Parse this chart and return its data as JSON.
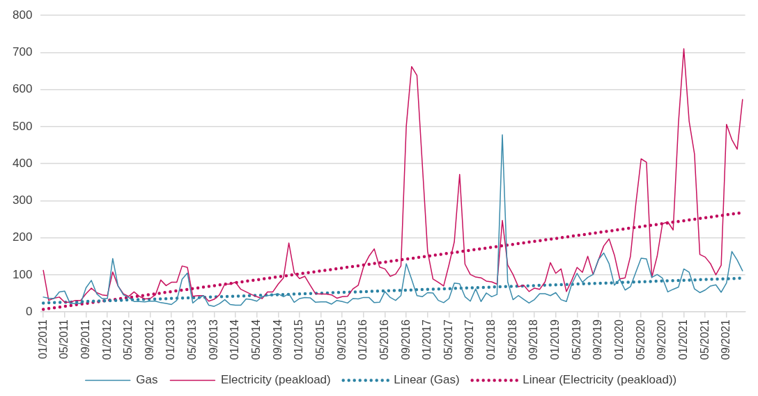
{
  "chart_data": {
    "type": "line",
    "categories": [
      "01/2011",
      null,
      null,
      null,
      "05/2011",
      null,
      null,
      null,
      "09/2011",
      null,
      null,
      null,
      "01/2012",
      null,
      null,
      null,
      "05/2012",
      null,
      null,
      null,
      "09/2012",
      null,
      null,
      null,
      "01/2013",
      null,
      null,
      null,
      "05/2013",
      null,
      null,
      null,
      "09/2013",
      null,
      null,
      null,
      "01/2014",
      null,
      null,
      null,
      "05/2014",
      null,
      null,
      null,
      "09/2014",
      null,
      null,
      null,
      "01/2015",
      null,
      null,
      null,
      "05/2015",
      null,
      null,
      null,
      "09/2015",
      null,
      null,
      null,
      "01/2016",
      null,
      null,
      null,
      "05/2016",
      null,
      null,
      null,
      "09/2016",
      null,
      null,
      null,
      "01/2017",
      null,
      null,
      null,
      "05/2017",
      null,
      null,
      null,
      "09/2017",
      null,
      null,
      null,
      "01/2018",
      null,
      null,
      null,
      "05/2018",
      null,
      null,
      null,
      "09/2018",
      null,
      null,
      null,
      "01/2019",
      null,
      null,
      null,
      "05/2019",
      null,
      null,
      null,
      "09/2019",
      null,
      null,
      null,
      "01/2020",
      null,
      null,
      null,
      "05/2020",
      null,
      null,
      null,
      "09/2020",
      null,
      null,
      null,
      "01/2021",
      null,
      null,
      null,
      "05/2021",
      null,
      null,
      null,
      "09/2021",
      null,
      null,
      null
    ],
    "series": [
      {
        "name": "Gas",
        "color": "#3a8bab",
        "values": [
          40,
          37,
          36,
          54,
          56,
          23,
          23,
          23,
          65,
          85,
          49,
          36,
          36,
          144,
          70,
          46,
          39,
          28,
          28,
          27,
          29,
          29,
          25,
          23,
          20,
          31,
          88,
          105,
          24,
          36,
          44,
          18,
          15,
          22,
          33,
          20,
          18,
          18,
          35,
          33,
          29,
          41,
          44,
          46,
          49,
          41,
          49,
          26,
          36,
          39,
          38,
          26,
          27,
          27,
          21,
          31,
          28,
          24,
          36,
          35,
          39,
          39,
          25,
          26,
          55,
          39,
          31,
          44,
          130,
          88,
          44,
          41,
          52,
          51,
          31,
          25,
          36,
          78,
          76,
          41,
          29,
          62,
          28,
          51,
          41,
          47,
          478,
          81,
          33,
          44,
          34,
          24,
          33,
          49,
          49,
          44,
          52,
          33,
          28,
          75,
          104,
          80,
          93,
          101,
          141,
          159,
          130,
          72,
          88,
          59,
          68,
          107,
          145,
          143,
          93,
          101,
          91,
          54,
          61,
          67,
          116,
          107,
          62,
          52,
          59,
          70,
          73,
          53,
          78,
          163,
          140,
          111
        ]
      },
      {
        "name": "Electricity (peakload)",
        "color": "#c8125e",
        "values": [
          112,
          31,
          37,
          40,
          26,
          26,
          31,
          31,
          49,
          64,
          52,
          46,
          44,
          108,
          70,
          49,
          42,
          54,
          42,
          35,
          36,
          46,
          86,
          71,
          80,
          80,
          124,
          120,
          42,
          44,
          44,
          29,
          34,
          46,
          75,
          75,
          80,
          61,
          54,
          47,
          41,
          36,
          54,
          54,
          75,
          92,
          186,
          106,
          90,
          96,
          72,
          49,
          48,
          48,
          46,
          37,
          41,
          42,
          62,
          72,
          122,
          150,
          170,
          121,
          116,
          96,
          102,
          124,
          501,
          662,
          638,
          400,
          163,
          89,
          80,
          70,
          127,
          189,
          371,
          129,
          101,
          94,
          92,
          83,
          81,
          75,
          247,
          127,
          101,
          68,
          72,
          55,
          64,
          61,
          81,
          133,
          104,
          116,
          55,
          85,
          120,
          107,
          150,
          101,
          140,
          178,
          197,
          153,
          89,
          92,
          150,
          290,
          413,
          404,
          93,
          150,
          238,
          243,
          221,
          511,
          710,
          514,
          426,
          155,
          148,
          130,
          100,
          126,
          506,
          465,
          439,
          573
        ]
      },
      {
        "name": "Linear (Gas)",
        "color": "#2a82a3",
        "line_style": "dotted",
        "values": [
          24,
          null,
          null,
          null,
          null,
          null,
          null,
          null,
          null,
          null,
          null,
          null,
          null,
          null,
          null,
          null,
          null,
          null,
          null,
          null,
          null,
          null,
          null,
          null,
          null,
          null,
          null,
          null,
          null,
          null,
          null,
          null,
          null,
          null,
          null,
          null,
          null,
          null,
          null,
          null,
          null,
          null,
          null,
          null,
          null,
          null,
          null,
          null,
          null,
          null,
          null,
          null,
          null,
          null,
          null,
          null,
          null,
          null,
          null,
          null,
          null,
          null,
          null,
          null,
          null,
          null,
          null,
          null,
          null,
          null,
          null,
          null,
          null,
          null,
          null,
          null,
          null,
          null,
          null,
          null,
          null,
          null,
          null,
          null,
          null,
          null,
          null,
          null,
          null,
          null,
          null,
          null,
          null,
          null,
          null,
          null,
          null,
          null,
          null,
          null,
          null,
          null,
          null,
          null,
          null,
          null,
          null,
          null,
          null,
          null,
          null,
          null,
          null,
          null,
          null,
          null,
          null,
          null,
          null,
          null,
          null,
          null,
          null,
          null,
          null,
          null,
          null,
          null,
          null,
          null,
          null,
          91
        ]
      },
      {
        "name": "Linear (Electricity (peakload))",
        "color": "#c0085c",
        "line_style": "dotted",
        "values": [
          7,
          null,
          null,
          null,
          null,
          null,
          null,
          null,
          null,
          null,
          null,
          null,
          null,
          null,
          null,
          null,
          null,
          null,
          null,
          null,
          null,
          null,
          null,
          null,
          null,
          null,
          null,
          null,
          null,
          null,
          null,
          null,
          null,
          null,
          null,
          null,
          null,
          null,
          null,
          null,
          null,
          null,
          null,
          null,
          null,
          null,
          null,
          null,
          null,
          null,
          null,
          null,
          null,
          null,
          null,
          null,
          null,
          null,
          null,
          null,
          null,
          null,
          null,
          null,
          null,
          null,
          null,
          null,
          null,
          null,
          null,
          null,
          null,
          null,
          null,
          null,
          null,
          null,
          null,
          null,
          null,
          null,
          null,
          null,
          null,
          null,
          null,
          null,
          null,
          null,
          null,
          null,
          null,
          null,
          null,
          null,
          null,
          null,
          null,
          null,
          null,
          null,
          null,
          null,
          null,
          null,
          null,
          null,
          null,
          null,
          null,
          null,
          null,
          null,
          null,
          null,
          null,
          null,
          null,
          null,
          null,
          null,
          null,
          null,
          null,
          null,
          null,
          null,
          null,
          null,
          null,
          268
        ]
      }
    ],
    "ylim": [
      0,
      800
    ],
    "yticks": [
      0,
      100,
      200,
      300,
      400,
      500,
      600,
      700,
      800
    ],
    "grid": "y",
    "legend": "bottom"
  }
}
